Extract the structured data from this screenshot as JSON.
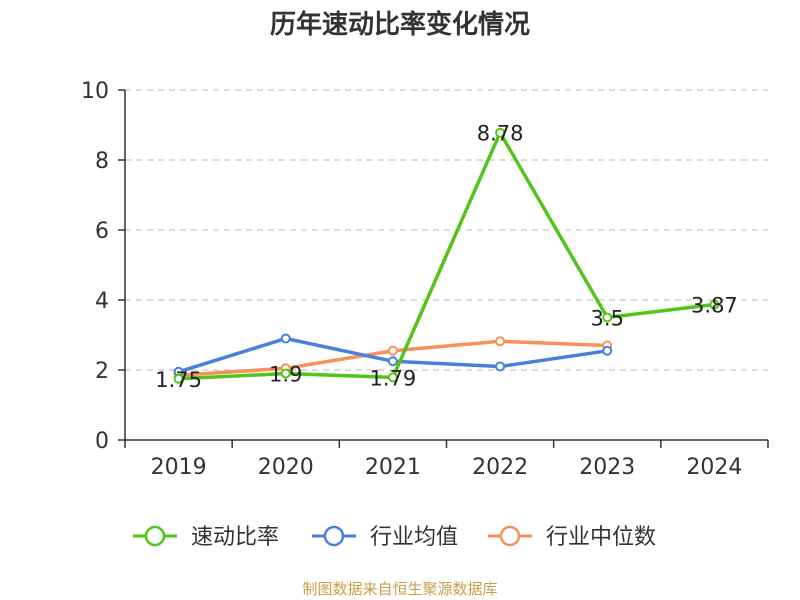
{
  "chart_data": {
    "type": "line",
    "title": "历年速动比率变化情况",
    "categories": [
      "2019",
      "2020",
      "2021",
      "2022",
      "2023",
      "2024"
    ],
    "ylim": [
      0,
      10
    ],
    "yticks": [
      0,
      2,
      4,
      6,
      8,
      10
    ],
    "grid": true,
    "legend_position": "bottom",
    "series": [
      {
        "name": "速动比率",
        "color": "#52c41a",
        "values": [
          1.75,
          1.9,
          1.79,
          8.78,
          3.5,
          3.87
        ],
        "labels": [
          "1.75",
          "1.9",
          "1.79",
          "8.78",
          "3.5",
          "3.87"
        ]
      },
      {
        "name": "行业均值",
        "color": "#4a7fdc",
        "values": [
          1.95,
          2.9,
          2.25,
          2.1,
          2.55,
          null
        ]
      },
      {
        "name": "行业中位数",
        "color": "#f5925a",
        "values": [
          1.85,
          2.05,
          2.55,
          2.82,
          2.7,
          null
        ]
      }
    ]
  },
  "source": "制图数据来自恒生聚源数据库"
}
